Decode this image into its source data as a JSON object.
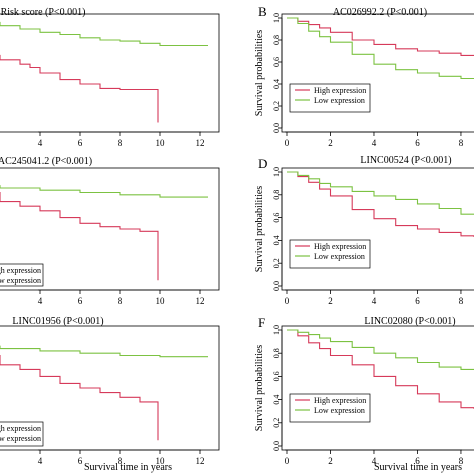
{
  "chart_data": [
    {
      "type": "line",
      "panel_label": "",
      "title": "Risk score (P<0.001)",
      "xlabel": "",
      "ylabel": "",
      "x_ticks": [
        "4",
        "6",
        "8",
        "10",
        "12"
      ],
      "y_ticks": [],
      "legend": [],
      "series": [
        {
          "name": "",
          "color": "#7cc242",
          "x": [
            0,
            1,
            2,
            3,
            4,
            5,
            6,
            7,
            8,
            9,
            10,
            11,
            12.4
          ],
          "y": [
            0.98,
            0.96,
            0.93,
            0.9,
            0.87,
            0.85,
            0.82,
            0.8,
            0.79,
            0.77,
            0.75,
            0.75,
            0.75
          ]
        },
        {
          "name": "",
          "color": "#d63a5a",
          "x": [
            0,
            1,
            2,
            3,
            3.5,
            4,
            5,
            6,
            7,
            8,
            9,
            9.9,
            9.9
          ],
          "y": [
            0.7,
            0.66,
            0.62,
            0.58,
            0.55,
            0.5,
            0.44,
            0.4,
            0.36,
            0.35,
            0.35,
            0.35,
            0.05
          ]
        }
      ]
    },
    {
      "type": "line",
      "panel_label": "B",
      "title": "AC026992.2 (P<0.001)",
      "xlabel": "",
      "ylabel": "Survival probabilities",
      "x_ticks": [
        "0",
        "2",
        "4",
        "6",
        "8"
      ],
      "y_ticks": [
        "0.0",
        "0.2",
        "0.4",
        "0.6",
        "0.8",
        "1.0"
      ],
      "legend": [
        "High expression",
        "Low expression"
      ],
      "series": [
        {
          "name": "High expression",
          "color": "#d63a5a",
          "x": [
            0,
            0.5,
            1,
            1.5,
            2,
            3,
            4,
            5,
            6,
            7,
            8,
            8.6
          ],
          "y": [
            1.0,
            0.97,
            0.94,
            0.91,
            0.87,
            0.8,
            0.76,
            0.72,
            0.7,
            0.68,
            0.66,
            0.66
          ]
        },
        {
          "name": "Low expression",
          "color": "#7cc242",
          "x": [
            0,
            0.5,
            1,
            1.5,
            2,
            3,
            4,
            5,
            6,
            7,
            8,
            8.6
          ],
          "y": [
            1.0,
            0.95,
            0.88,
            0.83,
            0.78,
            0.67,
            0.58,
            0.53,
            0.5,
            0.47,
            0.45,
            0.45
          ]
        }
      ]
    },
    {
      "type": "line",
      "panel_label": "",
      "title": "AC245041.2 (P<0.001)",
      "xlabel": "",
      "ylabel": "",
      "x_ticks": [
        "4",
        "6",
        "8",
        "10",
        "12"
      ],
      "y_ticks": [],
      "legend": [
        "High expression",
        "Low expression"
      ],
      "series": [
        {
          "name": "Low expression",
          "color": "#7cc242",
          "x": [
            0,
            2,
            4,
            6,
            8,
            10,
            12.4
          ],
          "y": [
            0.88,
            0.86,
            0.84,
            0.82,
            0.8,
            0.78,
            0.78
          ]
        },
        {
          "name": "High expression",
          "color": "#d63a5a",
          "x": [
            0,
            2,
            3,
            4,
            5,
            6,
            7,
            8,
            9,
            9.9,
            9.9
          ],
          "y": [
            0.82,
            0.74,
            0.7,
            0.66,
            0.6,
            0.55,
            0.52,
            0.5,
            0.48,
            0.47,
            0.05
          ]
        }
      ]
    },
    {
      "type": "line",
      "panel_label": "D",
      "title": "LINC00524 (P<0.001)",
      "xlabel": "",
      "ylabel": "Survival probabilities",
      "x_ticks": [
        "0",
        "2",
        "4",
        "6",
        "8"
      ],
      "y_ticks": [
        "0.0",
        "0.2",
        "0.4",
        "0.6",
        "0.8",
        "1.0"
      ],
      "legend": [
        "High expression",
        "Low expression"
      ],
      "series": [
        {
          "name": "High expression",
          "color": "#d63a5a",
          "x": [
            0,
            0.5,
            1,
            1.5,
            2,
            3,
            4,
            5,
            6,
            7,
            8,
            8.6
          ],
          "y": [
            1.0,
            0.96,
            0.91,
            0.85,
            0.79,
            0.67,
            0.59,
            0.53,
            0.5,
            0.47,
            0.44,
            0.43
          ]
        },
        {
          "name": "Low expression",
          "color": "#7cc242",
          "x": [
            0,
            0.5,
            1,
            1.5,
            2,
            3,
            4,
            5,
            6,
            7,
            8,
            8.6
          ],
          "y": [
            1.0,
            0.97,
            0.94,
            0.9,
            0.87,
            0.83,
            0.79,
            0.76,
            0.72,
            0.68,
            0.63,
            0.63
          ]
        }
      ]
    },
    {
      "type": "line",
      "panel_label": "",
      "title": "LINC01956 (P<0.001)",
      "xlabel": "Survival time in years",
      "ylabel": "",
      "x_ticks": [
        "4",
        "6",
        "8",
        "10",
        "12"
      ],
      "y_ticks": [],
      "legend": [
        "High expression",
        "Low expression"
      ],
      "series": [
        {
          "name": "Low expression",
          "color": "#7cc242",
          "x": [
            0,
            2,
            4,
            6,
            8,
            10,
            12.4
          ],
          "y": [
            0.86,
            0.84,
            0.82,
            0.8,
            0.78,
            0.77,
            0.77
          ]
        },
        {
          "name": "High expression",
          "color": "#d63a5a",
          "x": [
            0,
            2,
            3,
            4,
            5,
            6,
            7,
            8,
            9,
            9.9,
            9.9
          ],
          "y": [
            0.78,
            0.7,
            0.66,
            0.6,
            0.54,
            0.5,
            0.46,
            0.42,
            0.38,
            0.37,
            0.05
          ]
        }
      ]
    },
    {
      "type": "line",
      "panel_label": "F",
      "title": "LINC02080 (P<0.001)",
      "xlabel": "Survival time in years",
      "ylabel": "Survival probabilities",
      "x_ticks": [
        "0",
        "2",
        "4",
        "6",
        "8"
      ],
      "y_ticks": [
        "0.0",
        "0.2",
        "0.4",
        "0.6",
        "0.8",
        "1.0"
      ],
      "legend": [
        "High expression",
        "Low expression"
      ],
      "series": [
        {
          "name": "High expression",
          "color": "#d63a5a",
          "x": [
            0,
            0.5,
            1,
            1.5,
            2,
            3,
            4,
            5,
            6,
            7,
            8,
            8.6
          ],
          "y": [
            1.0,
            0.95,
            0.89,
            0.84,
            0.78,
            0.7,
            0.6,
            0.52,
            0.45,
            0.38,
            0.33,
            0.32
          ]
        },
        {
          "name": "Low expression",
          "color": "#7cc242",
          "x": [
            0,
            0.5,
            1,
            1.5,
            2,
            3,
            4,
            5,
            6,
            7,
            8,
            8.6
          ],
          "y": [
            1.0,
            0.98,
            0.96,
            0.93,
            0.9,
            0.85,
            0.8,
            0.76,
            0.72,
            0.68,
            0.66,
            0.66
          ]
        }
      ]
    }
  ]
}
